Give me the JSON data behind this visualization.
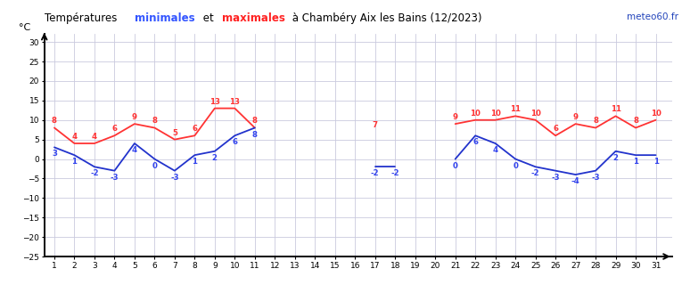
{
  "days": [
    1,
    2,
    3,
    4,
    5,
    6,
    7,
    8,
    9,
    10,
    11,
    12,
    13,
    14,
    15,
    16,
    17,
    18,
    19,
    20,
    21,
    22,
    23,
    24,
    25,
    26,
    27,
    28,
    29,
    30,
    31
  ],
  "max_temps": [
    8,
    4,
    4,
    6,
    9,
    8,
    5,
    6,
    13,
    13,
    8,
    null,
    null,
    null,
    null,
    null,
    7,
    null,
    null,
    null,
    9,
    10,
    10,
    11,
    10,
    6,
    9,
    8,
    11,
    8,
    10
  ],
  "min_temps": [
    3,
    1,
    -2,
    -3,
    4,
    0,
    -3,
    1,
    2,
    6,
    8,
    null,
    null,
    null,
    null,
    null,
    -2,
    -2,
    null,
    null,
    0,
    6,
    4,
    0,
    -2,
    -3,
    -4,
    -3,
    2,
    1,
    1
  ],
  "watermark": "meteo60.fr",
  "xlim": [
    0.5,
    31.8
  ],
  "ylim": [
    -25,
    32
  ],
  "yticks": [
    -25,
    -20,
    -15,
    -10,
    -5,
    0,
    5,
    10,
    15,
    20,
    25,
    30
  ],
  "xticks": [
    1,
    2,
    3,
    4,
    5,
    6,
    7,
    8,
    9,
    10,
    11,
    12,
    13,
    14,
    15,
    16,
    17,
    18,
    19,
    20,
    21,
    22,
    23,
    24,
    25,
    26,
    27,
    28,
    29,
    30,
    31
  ],
  "line_color_max": "#FF3333",
  "line_color_min": "#2233CC",
  "label_color_max": "#FF3333",
  "label_color_min": "#3344EE",
  "grid_color": "#CACADE",
  "bg_color": "#FFFFFF",
  "fig_bg": "#FFFFFF"
}
